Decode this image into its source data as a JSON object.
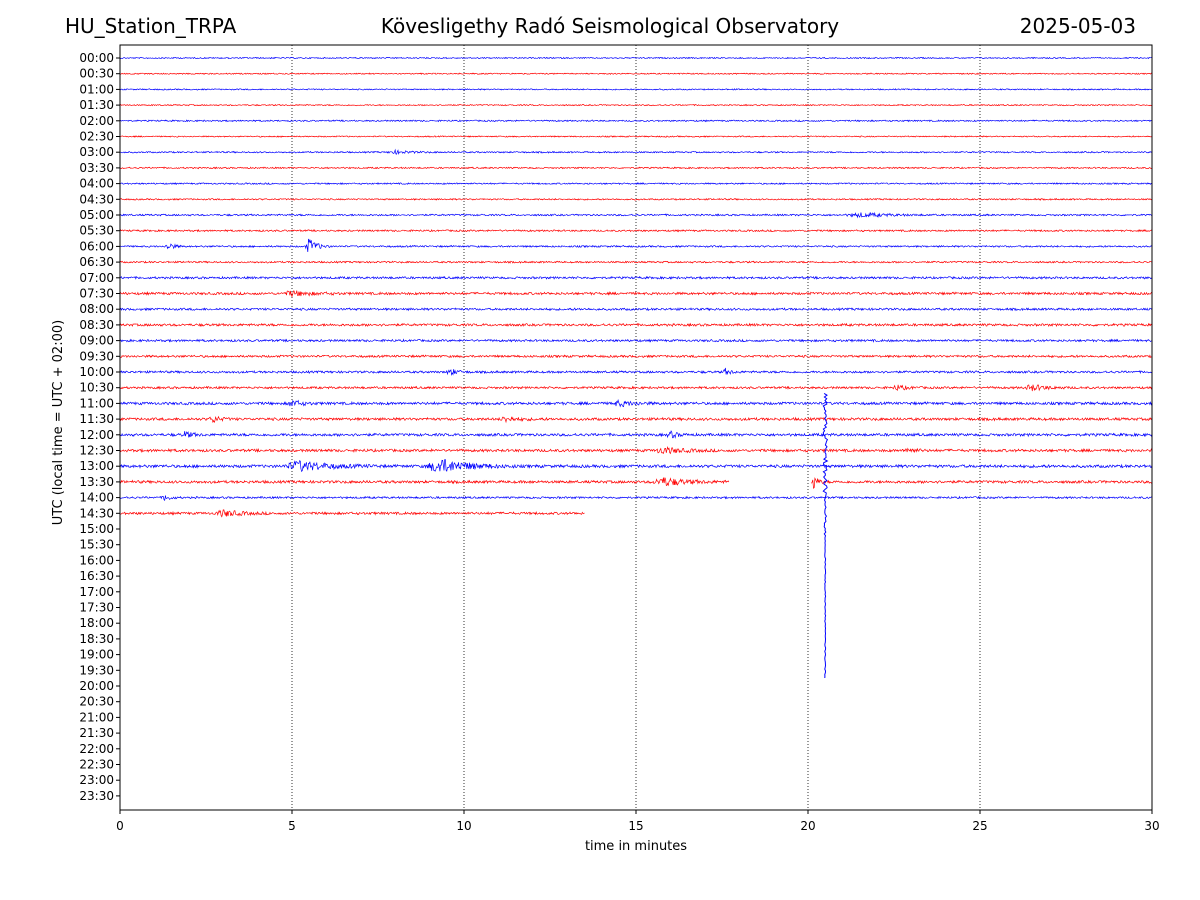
{
  "header": {
    "station": "HU_Station_TRPA",
    "observatory": "Kövesligethy Radó Seismological Observatory",
    "date": "2025-05-03"
  },
  "chart_data": {
    "type": "line",
    "title": "Kövesligethy Radó Seismological Observatory",
    "xlabel": "time in minutes",
    "ylabel": "UTC (local time = UTC + 02:00)",
    "xlim": [
      0,
      30
    ],
    "x_ticks": [
      "0",
      "5",
      "10",
      "15",
      "20",
      "25",
      "30"
    ],
    "x_tick_values": [
      0,
      5,
      10,
      15,
      20,
      25,
      30
    ],
    "grid": "vertical dotted at x ticks",
    "row_labels": [
      "00:00",
      "00:30",
      "01:00",
      "01:30",
      "02:00",
      "02:30",
      "03:00",
      "03:30",
      "04:00",
      "04:30",
      "05:00",
      "05:30",
      "06:00",
      "06:30",
      "07:00",
      "07:30",
      "08:00",
      "08:30",
      "09:00",
      "09:30",
      "10:00",
      "10:30",
      "11:00",
      "11:30",
      "12:00",
      "12:30",
      "13:00",
      "13:30",
      "14:00",
      "14:30",
      "15:00",
      "15:30",
      "16:00",
      "16:30",
      "17:00",
      "17:30",
      "18:00",
      "18:30",
      "19:00",
      "19:30",
      "20:00",
      "20:30",
      "21:00",
      "21:30",
      "22:00",
      "22:30",
      "23:00",
      "23:30"
    ],
    "colors": {
      "even_rows": "#0000ff",
      "odd_rows": "#ff0000"
    },
    "traces": [
      {
        "row": "00:00",
        "start": 0,
        "end": 30,
        "noise": 0.5
      },
      {
        "row": "00:30",
        "start": 0,
        "end": 30,
        "noise": 0.5
      },
      {
        "row": "01:00",
        "start": 0,
        "end": 30,
        "noise": 0.5
      },
      {
        "row": "01:30",
        "start": 0,
        "end": 30,
        "noise": 0.5
      },
      {
        "row": "02:00",
        "start": 0,
        "end": 30,
        "noise": 0.6
      },
      {
        "row": "02:30",
        "start": 0,
        "end": 30,
        "noise": 0.5
      },
      {
        "row": "03:00",
        "start": 0,
        "end": 30,
        "noise": 0.6,
        "events": [
          {
            "t": 8,
            "dur": 0.8,
            "amp": 1.5
          }
        ]
      },
      {
        "row": "03:30",
        "start": 0,
        "end": 30,
        "noise": 0.6
      },
      {
        "row": "04:00",
        "start": 0,
        "end": 30,
        "noise": 0.6
      },
      {
        "row": "04:30",
        "start": 0,
        "end": 30,
        "noise": 0.6
      },
      {
        "row": "05:00",
        "start": 0,
        "end": 30,
        "noise": 0.7,
        "events": [
          {
            "t": 21.5,
            "dur": 1.5,
            "amp": 2
          }
        ]
      },
      {
        "row": "05:30",
        "start": 0,
        "end": 30,
        "noise": 0.7
      },
      {
        "row": "06:00",
        "start": 0,
        "end": 30,
        "noise": 0.7,
        "events": [
          {
            "t": 1.4,
            "dur": 0.3,
            "amp": 4
          },
          {
            "t": 5.5,
            "dur": 0.4,
            "amp": 8
          }
        ]
      },
      {
        "row": "06:30",
        "start": 0,
        "end": 30,
        "noise": 0.7
      },
      {
        "row": "07:00",
        "start": 0,
        "end": 30,
        "noise": 0.9
      },
      {
        "row": "07:30",
        "start": 0,
        "end": 30,
        "noise": 1.0,
        "events": [
          {
            "t": 5,
            "dur": 1,
            "amp": 2.5
          }
        ]
      },
      {
        "row": "08:00",
        "start": 0,
        "end": 30,
        "noise": 0.9
      },
      {
        "row": "08:30",
        "start": 0,
        "end": 30,
        "noise": 1.0
      },
      {
        "row": "09:00",
        "start": 0,
        "end": 30,
        "noise": 0.9
      },
      {
        "row": "09:30",
        "start": 0,
        "end": 30,
        "noise": 0.9
      },
      {
        "row": "10:00",
        "start": 0,
        "end": 30,
        "noise": 0.9,
        "events": [
          {
            "t": 9.6,
            "dur": 0.4,
            "amp": 3
          },
          {
            "t": 17.6,
            "dur": 0.3,
            "amp": 3
          }
        ]
      },
      {
        "row": "10:30",
        "start": 0,
        "end": 30,
        "noise": 0.9,
        "events": [
          {
            "t": 22.6,
            "dur": 0.5,
            "amp": 2.5
          },
          {
            "t": 26.5,
            "dur": 0.8,
            "amp": 3
          }
        ]
      },
      {
        "row": "11:00",
        "start": 0,
        "end": 30,
        "noise": 1.1,
        "events": [
          {
            "t": 5,
            "dur": 0.5,
            "amp": 3
          },
          {
            "t": 14.5,
            "dur": 0.8,
            "amp": 2.5
          }
        ]
      },
      {
        "row": "11:30",
        "start": 0,
        "end": 30,
        "noise": 1.1,
        "events": [
          {
            "t": 2.7,
            "dur": 0.4,
            "amp": 3
          },
          {
            "t": 11.2,
            "dur": 0.6,
            "amp": 2.5
          }
        ]
      },
      {
        "row": "12:00",
        "start": 0,
        "end": 30,
        "noise": 1.1,
        "events": [
          {
            "t": 1.9,
            "dur": 0.4,
            "amp": 3
          },
          {
            "t": 16,
            "dur": 0.4,
            "amp": 3
          }
        ]
      },
      {
        "row": "12:30",
        "start": 0,
        "end": 30,
        "noise": 1.1,
        "events": [
          {
            "t": 15.8,
            "dur": 1,
            "amp": 3
          },
          {
            "t": 22.9,
            "dur": 0.4,
            "amp": 2.5
          }
        ]
      },
      {
        "row": "13:00",
        "start": 0,
        "end": 30,
        "noise": 1.2,
        "events": [
          {
            "t": 5.2,
            "dur": 1.6,
            "amp": 5
          },
          {
            "t": 9.3,
            "dur": 1.5,
            "amp": 7
          }
        ]
      },
      {
        "row": "13:30",
        "start": 0,
        "end": 17.7,
        "noise": 1.1,
        "events": [
          {
            "t": 15.8,
            "dur": 1.2,
            "amp": 4
          }
        ]
      },
      {
        "row": "13:30",
        "start": 20.1,
        "end": 30,
        "noise": 1.1,
        "events": [
          {
            "t": 20.15,
            "dur": 0.2,
            "amp": 8
          }
        ]
      },
      {
        "row": "14:00",
        "start": 0,
        "end": 30,
        "noise": 0.8,
        "events": [
          {
            "t": 1.3,
            "dur": 0.3,
            "amp": 3
          }
        ]
      },
      {
        "row": "14:30",
        "start": 0,
        "end": 13.5,
        "noise": 1.0,
        "events": [
          {
            "t": 3,
            "dur": 1,
            "amp": 3
          }
        ]
      }
    ],
    "large_event": {
      "row": "11:00",
      "t": 20.5,
      "span_rows": [
        22,
        40
      ],
      "color": "#0000ff"
    }
  }
}
